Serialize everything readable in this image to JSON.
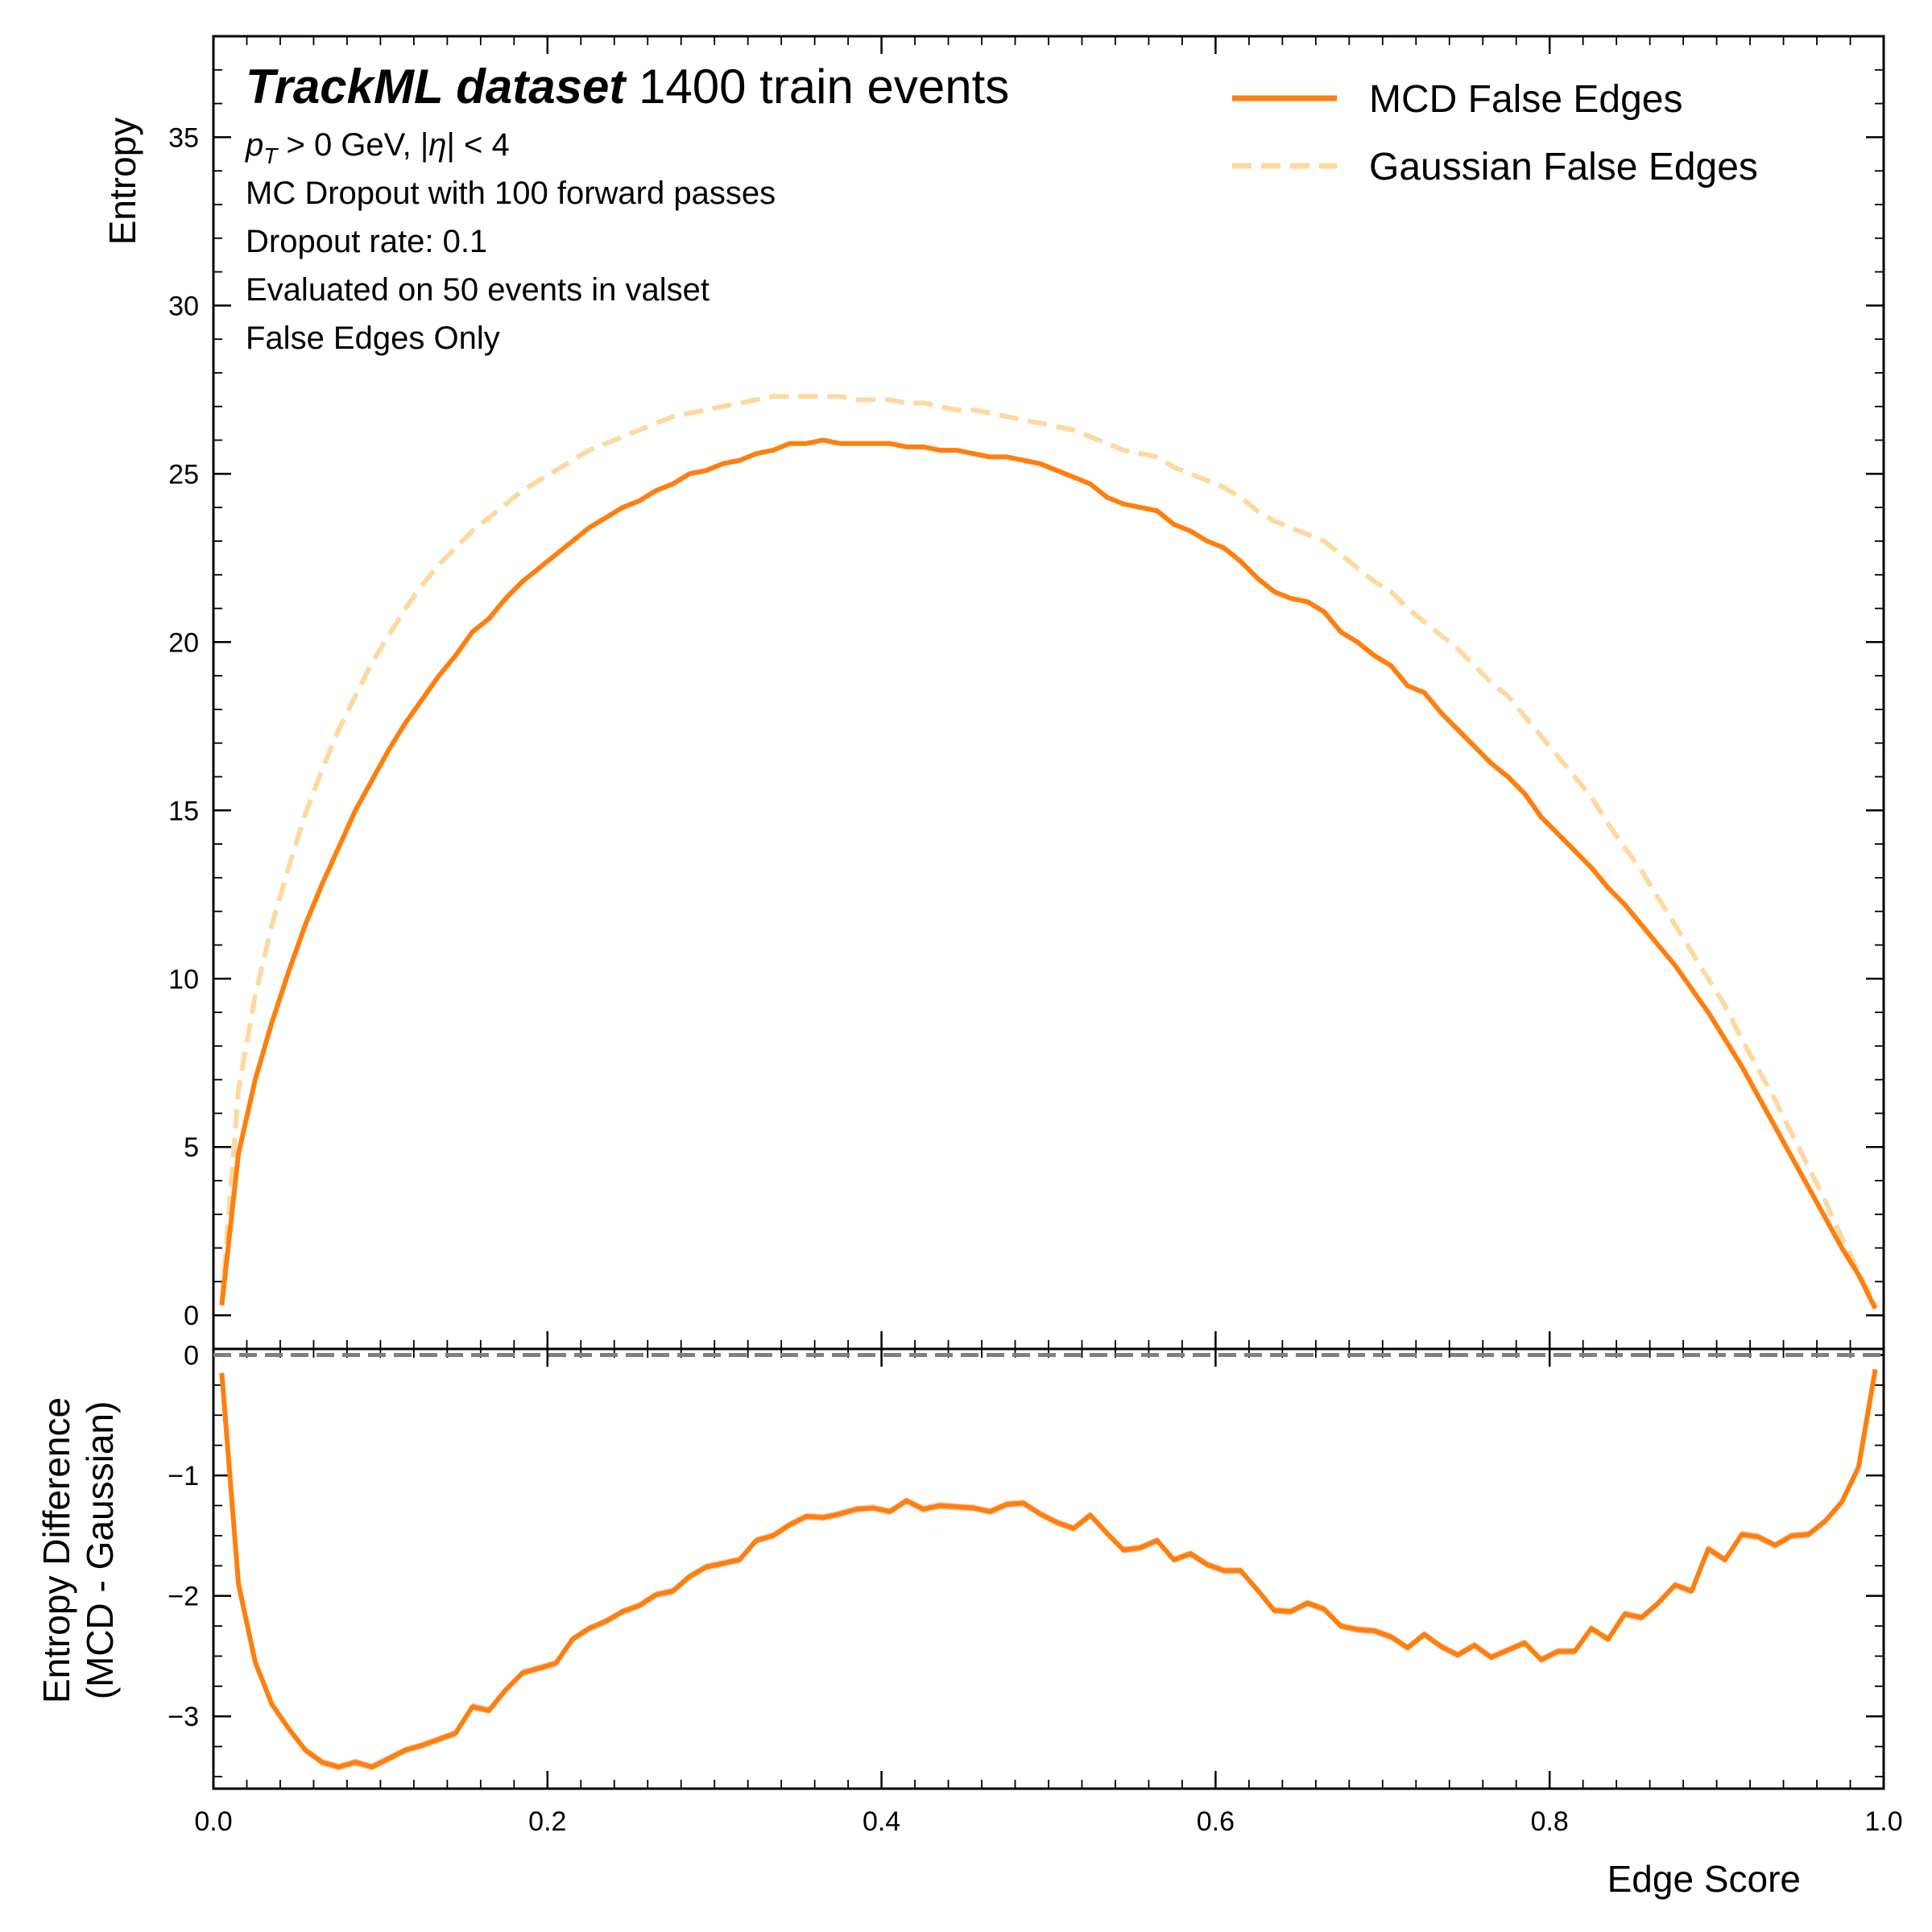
{
  "chart_data": [
    {
      "type": "line",
      "panel": "main",
      "xlabel": "",
      "ylabel": "Entropy",
      "xlim": [
        0.0,
        1.0
      ],
      "ylim": [
        -1,
        38
      ],
      "y_ticks": [
        "0",
        "5",
        "10",
        "15",
        "20",
        "25",
        "30",
        "35"
      ],
      "y_tick_values": [
        0,
        5,
        10,
        15,
        20,
        25,
        30,
        35
      ],
      "grid": false,
      "legend_position": "top-right",
      "title_bold": "TrackML dataset",
      "title_rest": " 1400 train events",
      "annotations": [
        "p_T > 0 GeV, |η| < 4",
        "MC Dropout with 100 forward passes",
        "Dropout rate: 0.1",
        "Evaluated on 50 events in valset",
        "False Edges Only"
      ],
      "x": [
        0.005,
        0.015,
        0.025,
        0.035,
        0.045,
        0.055,
        0.065,
        0.075,
        0.085,
        0.095,
        0.105,
        0.115,
        0.125,
        0.135,
        0.145,
        0.155,
        0.165,
        0.175,
        0.185,
        0.195,
        0.205,
        0.215,
        0.225,
        0.235,
        0.245,
        0.255,
        0.265,
        0.275,
        0.285,
        0.295,
        0.305,
        0.315,
        0.325,
        0.335,
        0.345,
        0.355,
        0.365,
        0.375,
        0.385,
        0.395,
        0.405,
        0.415,
        0.425,
        0.435,
        0.445,
        0.455,
        0.465,
        0.475,
        0.485,
        0.495,
        0.505,
        0.515,
        0.525,
        0.535,
        0.545,
        0.555,
        0.565,
        0.575,
        0.585,
        0.595,
        0.605,
        0.615,
        0.625,
        0.635,
        0.645,
        0.655,
        0.665,
        0.675,
        0.685,
        0.695,
        0.705,
        0.715,
        0.725,
        0.735,
        0.745,
        0.755,
        0.765,
        0.775,
        0.785,
        0.795,
        0.805,
        0.815,
        0.825,
        0.835,
        0.845,
        0.855,
        0.865,
        0.875,
        0.885,
        0.895,
        0.905,
        0.915,
        0.925,
        0.935,
        0.945,
        0.955,
        0.965,
        0.975,
        0.985,
        0.995
      ],
      "series": [
        {
          "name": "MCD False Edges",
          "color": "#ff7f0e",
          "style": "solid",
          "values": [
            0.3,
            4.8,
            7.0,
            8.7,
            10.2,
            11.6,
            12.8,
            13.9,
            15.0,
            15.9,
            16.8,
            17.6,
            18.3,
            19.0,
            19.6,
            20.3,
            20.7,
            21.3,
            21.8,
            22.2,
            22.6,
            23.0,
            23.4,
            23.7,
            24.0,
            24.2,
            24.5,
            24.7,
            25.0,
            25.1,
            25.3,
            25.4,
            25.6,
            25.7,
            25.9,
            25.9,
            26.0,
            25.9,
            25.9,
            25.9,
            25.9,
            25.8,
            25.8,
            25.7,
            25.7,
            25.6,
            25.5,
            25.5,
            25.4,
            25.3,
            25.1,
            24.9,
            24.7,
            24.3,
            24.1,
            24.0,
            23.9,
            23.5,
            23.3,
            23.0,
            22.8,
            22.4,
            21.9,
            21.5,
            21.3,
            21.2,
            20.9,
            20.3,
            20.0,
            19.6,
            19.3,
            18.7,
            18.5,
            17.9,
            17.4,
            16.9,
            16.4,
            16.0,
            15.5,
            14.8,
            14.3,
            13.8,
            13.3,
            12.7,
            12.2,
            11.6,
            11.0,
            10.4,
            9.7,
            9.0,
            8.2,
            7.4,
            6.5,
            5.6,
            4.7,
            3.8,
            2.9,
            2.0,
            1.2,
            0.2
          ]
        },
        {
          "name": "Gaussian False Edges",
          "color": "#fdd9a0",
          "style": "dashed",
          "values": [
            0.4,
            6.7,
            9.5,
            11.6,
            13.3,
            14.9,
            16.2,
            17.4,
            18.4,
            19.4,
            20.2,
            21.0,
            21.7,
            22.3,
            22.8,
            23.3,
            23.7,
            24.1,
            24.5,
            24.8,
            25.1,
            25.4,
            25.7,
            25.9,
            26.1,
            26.3,
            26.5,
            26.7,
            26.8,
            26.9,
            27.0,
            27.1,
            27.2,
            27.3,
            27.3,
            27.3,
            27.3,
            27.3,
            27.2,
            27.2,
            27.2,
            27.1,
            27.1,
            27.0,
            26.9,
            26.9,
            26.8,
            26.7,
            26.6,
            26.5,
            26.4,
            26.3,
            26.1,
            25.9,
            25.7,
            25.6,
            25.5,
            25.2,
            25.0,
            24.8,
            24.6,
            24.3,
            23.9,
            23.6,
            23.4,
            23.2,
            23.0,
            22.6,
            22.2,
            21.8,
            21.5,
            21.0,
            20.6,
            20.2,
            19.8,
            19.3,
            18.8,
            18.4,
            17.8,
            17.2,
            16.6,
            16.0,
            15.4,
            14.6,
            13.9,
            13.2,
            12.4,
            11.6,
            10.8,
            10.0,
            9.2,
            8.2,
            7.3,
            6.4,
            5.4,
            4.4,
            3.4,
            2.3,
            1.3,
            0.3
          ]
        }
      ]
    },
    {
      "type": "line",
      "panel": "ratio",
      "xlabel": "Edge Score",
      "ylabel_line1": "Entropy Difference",
      "ylabel_line2": "(MCD - Gaussian)",
      "xlim": [
        0.0,
        1.0
      ],
      "ylim": [
        -3.6,
        0.05
      ],
      "x_ticks": [
        "0.0",
        "0.2",
        "0.4",
        "0.6",
        "0.8",
        "1.0"
      ],
      "x_tick_values": [
        0.0,
        0.2,
        0.4,
        0.6,
        0.8,
        1.0
      ],
      "y_ticks": [
        "0",
        "−1",
        "−2",
        "−3"
      ],
      "y_tick_values": [
        0,
        -1,
        -2,
        -3
      ],
      "grid": false,
      "reference_line": {
        "y": 0,
        "color": "#808080",
        "style": "dashed"
      },
      "series": [
        {
          "name": "MCD - Gaussian",
          "color": "#ff7f0e",
          "band_color": "#f5b895",
          "values": [
            -0.15,
            -1.9,
            -2.55,
            -2.9,
            -3.1,
            -3.28,
            -3.38,
            -3.42,
            -3.38,
            -3.42,
            -3.35,
            -3.28,
            -3.24,
            -3.19,
            -3.14,
            -2.92,
            -2.95,
            -2.78,
            -2.64,
            -2.6,
            -2.56,
            -2.36,
            -2.27,
            -2.21,
            -2.13,
            -2.08,
            -1.99,
            -1.96,
            -1.84,
            -1.76,
            -1.73,
            -1.7,
            -1.54,
            -1.5,
            -1.41,
            -1.34,
            -1.35,
            -1.32,
            -1.28,
            -1.27,
            -1.3,
            -1.21,
            -1.28,
            -1.25,
            -1.26,
            -1.27,
            -1.3,
            -1.24,
            -1.23,
            -1.32,
            -1.39,
            -1.44,
            -1.33,
            -1.48,
            -1.62,
            -1.6,
            -1.54,
            -1.7,
            -1.65,
            -1.74,
            -1.79,
            -1.79,
            -1.95,
            -2.12,
            -2.13,
            -2.06,
            -2.11,
            -2.25,
            -2.28,
            -2.29,
            -2.34,
            -2.43,
            -2.32,
            -2.42,
            -2.49,
            -2.41,
            -2.51,
            -2.45,
            -2.39,
            -2.53,
            -2.46,
            -2.46,
            -2.27,
            -2.36,
            -2.15,
            -2.18,
            -2.06,
            -1.91,
            -1.96,
            -1.61,
            -1.7,
            -1.49,
            -1.51,
            -1.58,
            -1.5,
            -1.49,
            -1.38,
            -1.22,
            -0.93,
            -0.12
          ]
        }
      ]
    }
  ],
  "legend": [
    {
      "label": "MCD False Edges",
      "color": "#ff7f0e",
      "style": "solid"
    },
    {
      "label": "Gaussian False Edges",
      "color": "#fdd9a0",
      "style": "dashed"
    }
  ]
}
